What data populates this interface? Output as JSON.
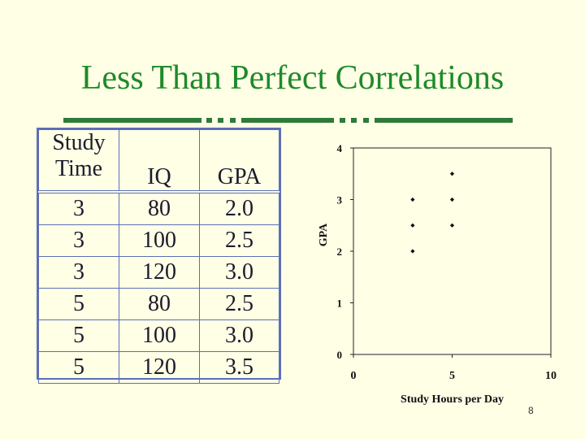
{
  "slide": {
    "title": "Less Than Perfect Correlations",
    "page_number": "8",
    "accent_color": "#1e8a2a",
    "table_border_color": "#5b6fb8"
  },
  "table": {
    "headers": [
      "Study\nTime",
      "IQ",
      "GPA"
    ],
    "rows": [
      [
        "3",
        "80",
        "2.0"
      ],
      [
        "3",
        "100",
        "2.5"
      ],
      [
        "3",
        "120",
        "3.0"
      ],
      [
        "5",
        "80",
        "2.5"
      ],
      [
        "5",
        "100",
        "3.0"
      ],
      [
        "5",
        "120",
        "3.5"
      ]
    ]
  },
  "chart_data": {
    "type": "scatter",
    "title": "",
    "xlabel": "Study Hours per Day",
    "ylabel": "GPA",
    "xlim": [
      0,
      10
    ],
    "ylim": [
      0,
      4
    ],
    "x_ticks": [
      "0",
      "5",
      "10"
    ],
    "y_ticks": [
      "0",
      "1",
      "2",
      "3",
      "4"
    ],
    "grid": false,
    "series": [
      {
        "points": [
          {
            "x": 3,
            "y": 2.0
          },
          {
            "x": 3,
            "y": 2.5
          },
          {
            "x": 3,
            "y": 3.0
          },
          {
            "x": 5,
            "y": 2.5
          },
          {
            "x": 5,
            "y": 3.0
          },
          {
            "x": 5,
            "y": 3.5
          }
        ]
      }
    ]
  }
}
